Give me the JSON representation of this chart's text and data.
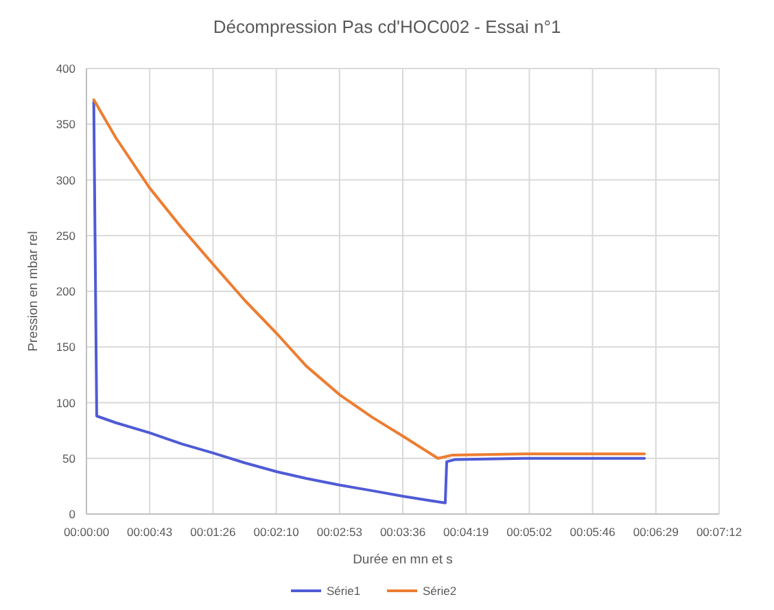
{
  "chart_data": {
    "type": "line",
    "title": "Décompression Pas cd'HOC002 - Essai n°1",
    "xlabel": "Durée en mn et s",
    "ylabel": "Pression en mbar rel",
    "xlim": [
      0,
      432
    ],
    "xticks": [
      {
        "value": 0,
        "label": "00:00:00"
      },
      {
        "value": 43.2,
        "label": "00:00:43"
      },
      {
        "value": 86.4,
        "label": "00:01:26"
      },
      {
        "value": 129.6,
        "label": "00:02:10"
      },
      {
        "value": 172.8,
        "label": "00:02:53"
      },
      {
        "value": 216,
        "label": "00:03:36"
      },
      {
        "value": 259.2,
        "label": "00:04:19"
      },
      {
        "value": 302.4,
        "label": "00:05:02"
      },
      {
        "value": 345.6,
        "label": "00:05:46"
      },
      {
        "value": 388.8,
        "label": "00:06:29"
      },
      {
        "value": 432,
        "label": "00:07:12"
      }
    ],
    "ylim": [
      0,
      400
    ],
    "yticks": [
      0,
      50,
      100,
      150,
      200,
      250,
      300,
      350,
      400
    ],
    "grid": true,
    "legend": "bottom",
    "marker": "none",
    "line_style": "solid",
    "series": [
      {
        "name": "Série1",
        "color": "#4f5bd5",
        "x": [
          5,
          7,
          20,
          43,
          65,
          86,
          108,
          130,
          150,
          173,
          195,
          216,
          235,
          245,
          246,
          252,
          300,
          381
        ],
        "values": [
          370,
          88,
          82,
          73,
          63,
          55,
          46,
          38,
          32,
          26,
          21,
          16,
          12,
          10,
          47,
          49,
          50,
          50
        ]
      },
      {
        "name": "Série2",
        "color": "#ed7d31",
        "x": [
          5,
          20,
          43,
          65,
          86,
          108,
          130,
          150,
          173,
          195,
          216,
          240,
          250,
          300,
          381
        ],
        "values": [
          372,
          338,
          293,
          257,
          225,
          192,
          162,
          133,
          107,
          87,
          70,
          50,
          53,
          54,
          54
        ]
      }
    ]
  }
}
